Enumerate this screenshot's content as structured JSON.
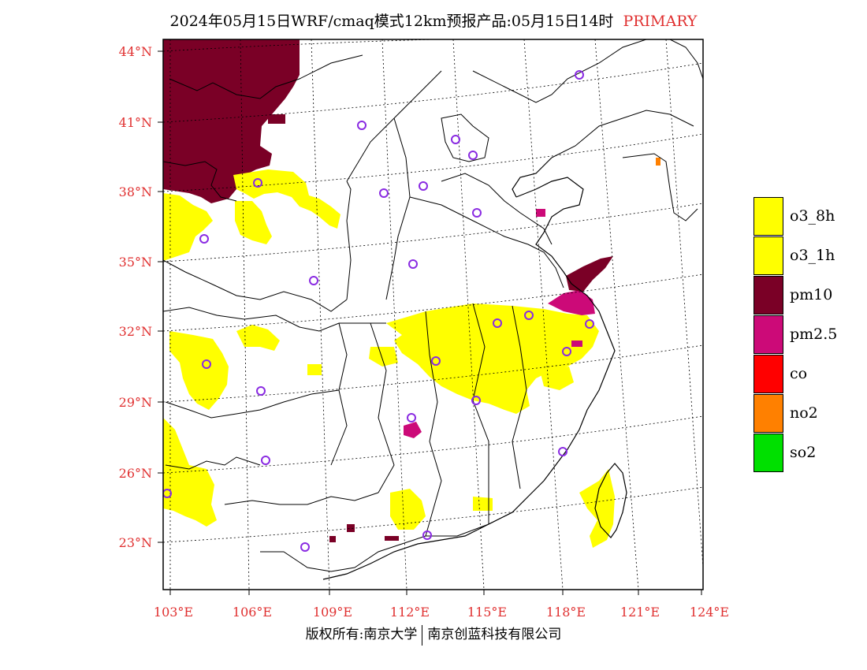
{
  "header": {
    "title": "2024年05月15日WRF/cmaq模式12km预报产品:05月15日14时",
    "tag": "PRIMARY"
  },
  "axes": {
    "lat_labels": [
      "44°N",
      "41°N",
      "38°N",
      "35°N",
      "32°N",
      "29°N",
      "26°N",
      "23°N"
    ],
    "lon_labels": [
      "103°E",
      "106°E",
      "109°E",
      "112°E",
      "115°E",
      "118°E",
      "121°E",
      "124°E"
    ]
  },
  "legend": {
    "items": [
      {
        "label": "o3_8h",
        "color": "#ffff00"
      },
      {
        "label": "o3_1h",
        "color": "#ffff00"
      },
      {
        "label": "pm10",
        "color": "#7a0026"
      },
      {
        "label": "pm2.5",
        "color": "#cc0a78"
      },
      {
        "label": "co",
        "color": "#ff0000"
      },
      {
        "label": "no2",
        "color": "#ff8000"
      },
      {
        "label": "so2",
        "color": "#00e000"
      }
    ]
  },
  "footer": {
    "copyright": "版权所有:南京大学",
    "company": "南京创蓝科技有限公司"
  },
  "colors": {
    "pm10": "#7a0026",
    "pm25": "#cc0a78",
    "o3": "#ffff00",
    "station": "#8a2be2",
    "label_red": "#e03030"
  }
}
